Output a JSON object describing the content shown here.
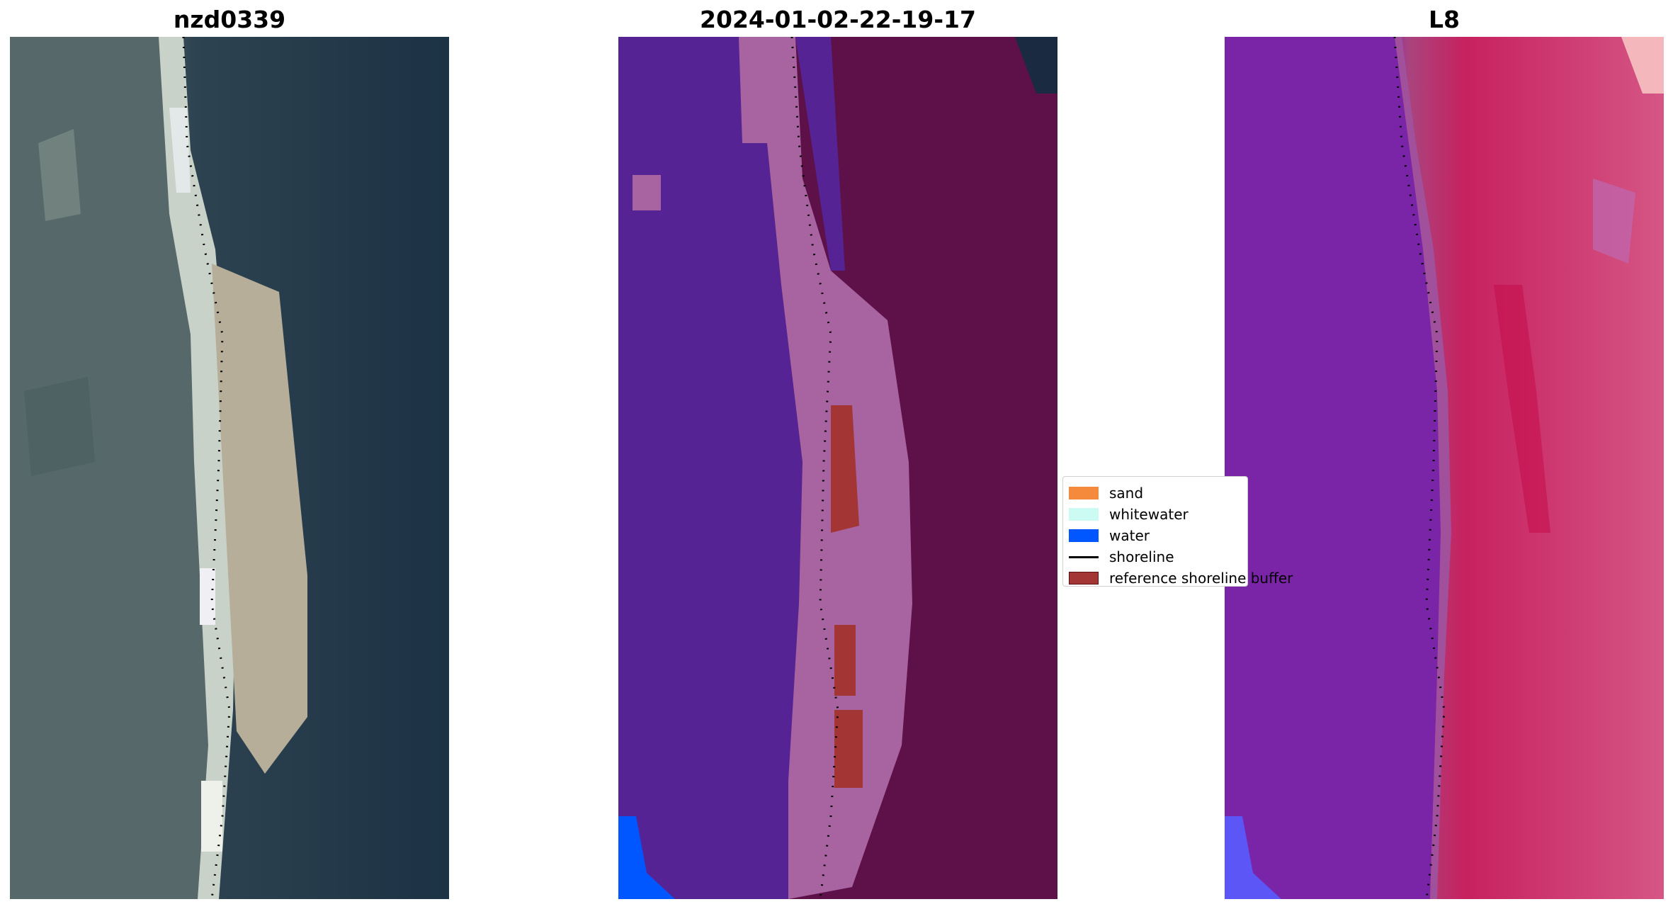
{
  "titles": {
    "left": "nzd0339",
    "middle": "2024-01-02-22-19-17",
    "right": "L8"
  },
  "legend": [
    {
      "label": "sand",
      "color": "#f5893c",
      "kind": "patch"
    },
    {
      "label": "whitewater",
      "color": "#ccfbf3",
      "kind": "patch"
    },
    {
      "label": "water",
      "color": "#0057ff",
      "kind": "patch"
    },
    {
      "label": "shoreline",
      "color": "#000000",
      "kind": "line"
    },
    {
      "label": "reference shoreline buffer",
      "color": "#a33535",
      "kind": "patch"
    }
  ],
  "colors": {
    "ocean_rgb": "#1d3346",
    "land_rgb": "#55636a",
    "sand_rgb": "#b8b198",
    "class_land": "#552394",
    "class_sand_overlay": "#a864a0",
    "class_ocean": "#5e1048",
    "class_buffer": "#a33535",
    "class_water": "#0057ff",
    "index_land": "#7a25a8",
    "index_ocean": "#d03a74",
    "index_water": "#5b56f5"
  }
}
